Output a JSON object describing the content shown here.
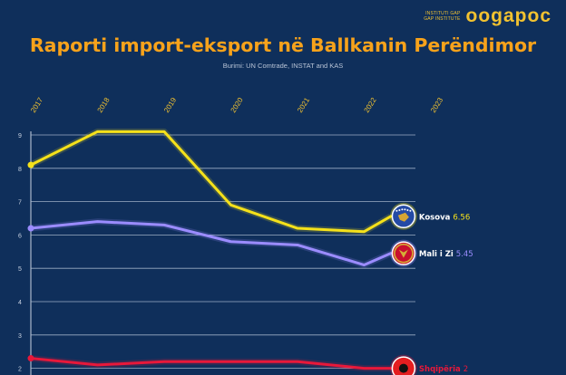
{
  "brand": {
    "small_line1": "INSTITUTI GAP",
    "small_line2": "GAP INSTITUTE",
    "name": "oogapoc"
  },
  "chart_data": {
    "type": "line",
    "title": "Raporti import-eksport në Ballkanin Perëndimor",
    "subtitle": "Burimi: UN Comtrade, INSTAT and KAS",
    "years": [
      "2017",
      "2018",
      "2019",
      "2020",
      "2021",
      "2022",
      "2023"
    ],
    "y_ticks": [
      2,
      3,
      4,
      5,
      6,
      7,
      8,
      9
    ],
    "ylim": [
      2,
      9
    ],
    "grid": true,
    "series": [
      {
        "name": "Kosova",
        "label_value": "6.56",
        "color": "#f5e11a",
        "x": [
          2017,
          2018,
          2019,
          2020,
          2021,
          2022,
          2022.4
        ],
        "values": [
          8.1,
          9.1,
          9.1,
          6.9,
          6.2,
          6.1,
          6.56
        ],
        "flag_icon": "kosovo-flag-icon"
      },
      {
        "name": "Mali i Zi",
        "label_value": "5.45",
        "color": "#9b8cff",
        "x": [
          2017,
          2018,
          2019,
          2020,
          2021,
          2022,
          2022.4
        ],
        "values": [
          6.2,
          6.4,
          6.3,
          5.8,
          5.7,
          5.1,
          5.45
        ],
        "flag_icon": "montenegro-flag-icon"
      },
      {
        "name": "Shqipëria",
        "label_value": "2",
        "color": "#e8183a",
        "x": [
          2017,
          2018,
          2019,
          2020,
          2021,
          2022,
          2022.4
        ],
        "values": [
          2.3,
          2.1,
          2.2,
          2.2,
          2.2,
          2.0,
          2.0
        ],
        "flag_icon": "albania-flag-icon"
      }
    ]
  }
}
